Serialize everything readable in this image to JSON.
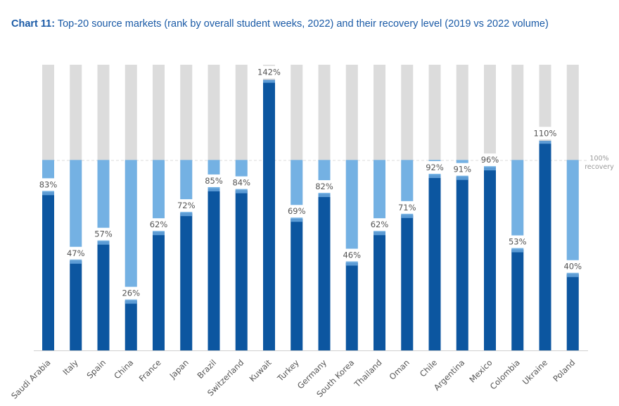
{
  "title_prefix": "Chart 11:",
  "title_text": "Top-20 source markets (rank by overall student weeks, 2022) and their recovery level (2019 vs 2022 volume)",
  "colors": {
    "title": "#1a5aa6",
    "background_bar": "#dcdcdc",
    "shortfall": "#74b1e3",
    "value_bar": "#0c56a0",
    "cap": "#5b9bd5"
  },
  "chart_data": {
    "type": "bar",
    "categories": [
      "Saudi Arabia",
      "Italy",
      "Spain",
      "China",
      "France",
      "Japan",
      "Brazil",
      "Switzerland",
      "Kuwait",
      "Turkey",
      "Germany",
      "South Korea",
      "Thailand",
      "Oman",
      "Chile",
      "Argentina",
      "Mexico",
      "Colombia",
      "Ukraine",
      "Poland"
    ],
    "values": [
      83,
      47,
      57,
      26,
      62,
      72,
      85,
      84,
      142,
      69,
      82,
      46,
      62,
      71,
      92,
      91,
      96,
      53,
      110,
      40
    ],
    "value_labels": [
      "83%",
      "47%",
      "57%",
      "26%",
      "62%",
      "72%",
      "85%",
      "84%",
      "142%",
      "69%",
      "82%",
      "46%",
      "62%",
      "71%",
      "92%",
      "91%",
      "96%",
      "53%",
      "110%",
      "40%"
    ],
    "ylim": [
      0,
      150
    ],
    "reference_line": {
      "value": 100,
      "label_line1": "100%",
      "label_line2": "recovery"
    },
    "grid": false,
    "legend": "none"
  }
}
